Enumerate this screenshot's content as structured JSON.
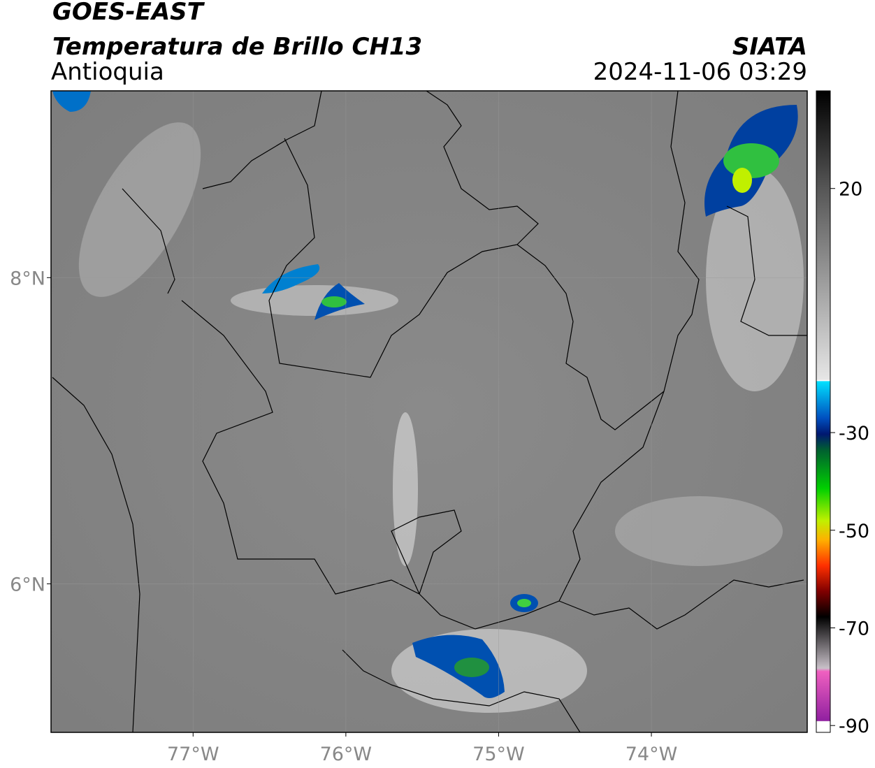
{
  "header": {
    "satellite": "GOES-EAST",
    "product": "Temperatura de Brillo CH13",
    "region": "Antioquia",
    "agency": "SIATA",
    "datetime": "2024-11-06 03:29"
  },
  "map": {
    "xlim": [
      -77.93,
      -72.98
    ],
    "ylim": [
      5.03,
      9.22
    ],
    "xticks": [
      {
        "value": -77,
        "label": "77°W"
      },
      {
        "value": -76,
        "label": "76°W"
      },
      {
        "value": -75,
        "label": "75°W"
      },
      {
        "value": -74,
        "label": "74°W"
      }
    ],
    "yticks": [
      {
        "value": 8,
        "label": "8°N"
      },
      {
        "value": 6,
        "label": "6°N"
      }
    ],
    "grid": true
  },
  "colorbar": {
    "lim": [
      -91.4,
      40
    ],
    "ticks": [
      20,
      -30,
      -50,
      -70,
      -90
    ]
  }
}
